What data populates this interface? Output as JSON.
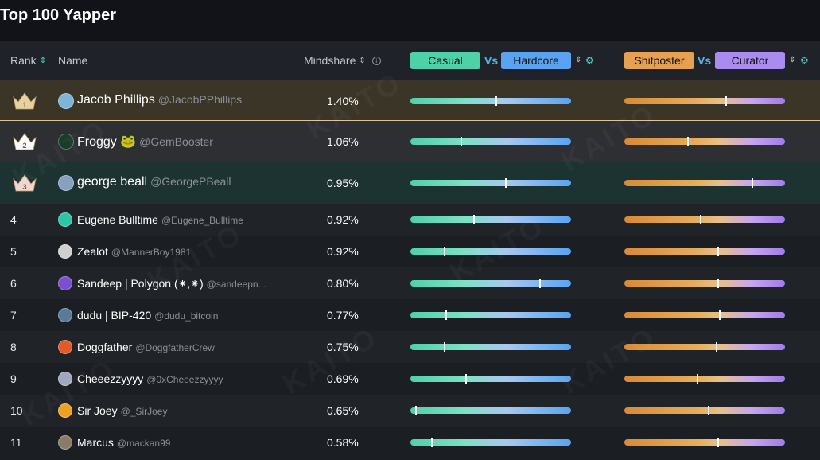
{
  "title": "Top 100 Yapper",
  "header": {
    "rank": "Rank",
    "name": "Name",
    "mindshare": "Mindshare",
    "casual": "Casual",
    "vs1": "Vs",
    "hardcore": "Hardcore",
    "shitposter": "Shitposter",
    "vs2": "Vs",
    "curator": "Curator"
  },
  "watermark": "KAITO",
  "colors": {
    "casual": "#4fd1a8",
    "hardcore": "#5aa3f0",
    "shitposter": "#e5a150",
    "curator": "#a98cf0"
  },
  "rows": [
    {
      "rank": "1",
      "name": "Jacob Phillips",
      "handle": "@JacobPPhillips",
      "mindshare": "1.40%",
      "casual_hardcore": 0.53,
      "shit_curator": 0.63,
      "avatar": "#7fb4d6"
    },
    {
      "rank": "2",
      "name": "Froggy 🐸",
      "handle": "@GemBooster",
      "mindshare": "1.06%",
      "casual_hardcore": 0.31,
      "shit_curator": 0.39,
      "avatar": "#1a3a2a"
    },
    {
      "rank": "3",
      "name": "george beall",
      "handle": "@GeorgePBeall",
      "mindshare": "0.95%",
      "casual_hardcore": 0.59,
      "shit_curator": 0.79,
      "avatar": "#8aa0c0"
    },
    {
      "rank": "4",
      "name": "Eugene Bulltime",
      "handle": "@Eugene_Bulltime",
      "mindshare": "0.92%",
      "casual_hardcore": 0.39,
      "shit_curator": 0.47,
      "avatar": "#2ec4a8"
    },
    {
      "rank": "5",
      "name": "Zealot",
      "handle": "@MannerBoy1981",
      "mindshare": "0.92%",
      "casual_hardcore": 0.21,
      "shit_curator": 0.58,
      "avatar": "#d0d0d0"
    },
    {
      "rank": "6",
      "name": "Sandeep | Polygon (⁕,⁕)",
      "handle": "@sandeepn...",
      "mindshare": "0.80%",
      "casual_hardcore": 0.8,
      "shit_curator": 0.58,
      "avatar": "#7a4fd0"
    },
    {
      "rank": "7",
      "name": "dudu | BIP-420",
      "handle": "@dudu_bitcoin",
      "mindshare": "0.77%",
      "casual_hardcore": 0.22,
      "shit_curator": 0.59,
      "avatar": "#5a7a9a"
    },
    {
      "rank": "8",
      "name": "Doggfather",
      "handle": "@DoggfatherCrew",
      "mindshare": "0.75%",
      "casual_hardcore": 0.21,
      "shit_curator": 0.57,
      "avatar": "#e05a2a"
    },
    {
      "rank": "9",
      "name": "Cheeezzyyyy",
      "handle": "@0xCheeezzyyyy",
      "mindshare": "0.69%",
      "casual_hardcore": 0.34,
      "shit_curator": 0.45,
      "avatar": "#a0a8c0"
    },
    {
      "rank": "10",
      "name": "Sir Joey",
      "handle": "@_SirJoey",
      "mindshare": "0.65%",
      "casual_hardcore": 0.03,
      "shit_curator": 0.52,
      "avatar": "#f0a020"
    },
    {
      "rank": "11",
      "name": "Marcus",
      "handle": "@mackan99",
      "mindshare": "0.58%",
      "casual_hardcore": 0.13,
      "shit_curator": 0.58,
      "avatar": "#8a7a6a"
    }
  ]
}
